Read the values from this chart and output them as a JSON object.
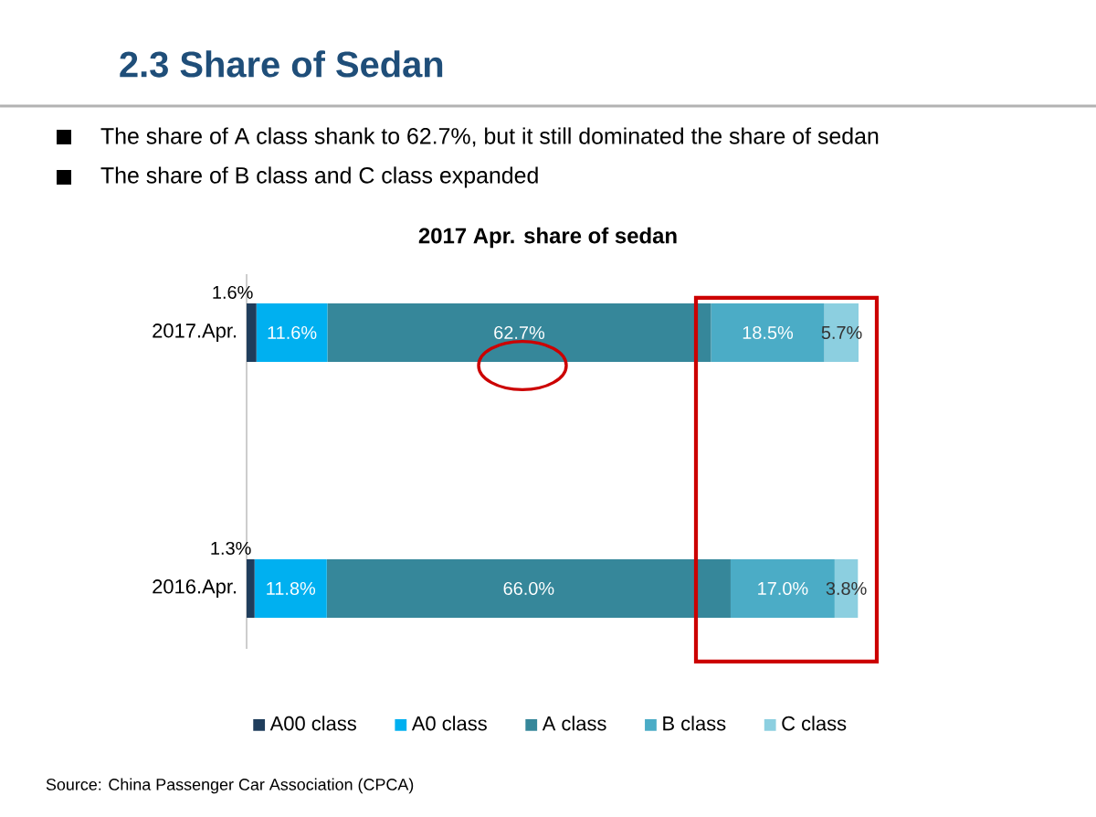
{
  "chart_data": {
    "type": "bar",
    "orientation": "horizontal",
    "stacked": true,
    "title": "2.3 Share of Sedan",
    "subtitle": "2017 Apr. share of sedan",
    "annotations": [
      "The share of A class shank to 62.7%, but it still dominated the share of sedan",
      "The share of B class and C class expanded",
      "Source: China Passenger Car Association (CPCA)"
    ],
    "categories": [
      "2017.Apr.",
      "2016.Apr."
    ],
    "xlim": [
      0,
      100
    ],
    "tick_labels": "y",
    "legend": "bottom",
    "series": [
      {
        "name": "A00 class",
        "color": "#1f3d5c",
        "values": [
          1.6,
          1.3
        ],
        "value_labels": [
          "1.6%",
          "1.3%"
        ]
      },
      {
        "name": "A0 class",
        "color": "#00b0f0",
        "values": [
          11.6,
          11.8
        ],
        "value_labels": [
          "11.6%",
          "11.8%"
        ]
      },
      {
        "name": "A class",
        "color": "#36879a",
        "values": [
          62.7,
          66.0
        ],
        "value_labels": [
          "62.7%",
          "66.0%"
        ]
      },
      {
        "name": "B class",
        "color": "#4bacc6",
        "values": [
          18.5,
          17.0
        ],
        "value_labels": [
          "18.5%",
          "17.0%"
        ]
      },
      {
        "name": "C class",
        "color": "#8ccfe0",
        "values": [
          5.7,
          3.8
        ],
        "value_labels": [
          "5.7%",
          "3.8%"
        ]
      }
    ]
  }
}
